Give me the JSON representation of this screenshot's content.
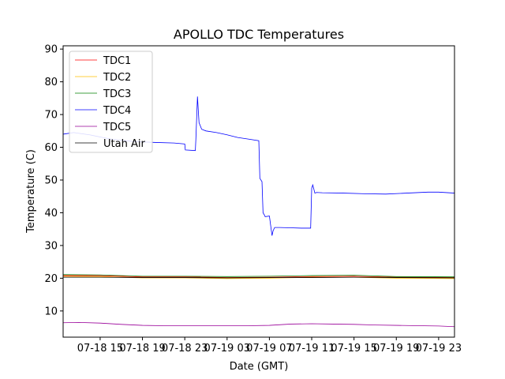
{
  "chart_data": {
    "type": "line",
    "title": "APOLLO TDC Temperatures",
    "xlabel": "Date (GMT)",
    "ylabel": "Temperature (C)",
    "x_range_hours": [
      11.5,
      48.5
    ],
    "ylim": [
      2,
      91
    ],
    "x_ticks": [
      {
        "h": 15,
        "label": "07-18 15"
      },
      {
        "h": 19,
        "label": "07-18 19"
      },
      {
        "h": 23,
        "label": "07-18 23"
      },
      {
        "h": 27,
        "label": "07-19 03"
      },
      {
        "h": 31,
        "label": "07-19 07"
      },
      {
        "h": 35,
        "label": "07-19 11"
      },
      {
        "h": 39,
        "label": "07-19 15"
      },
      {
        "h": 43,
        "label": "07-19 19"
      },
      {
        "h": 47,
        "label": "07-19 23"
      }
    ],
    "y_ticks": [
      10,
      20,
      30,
      40,
      50,
      60,
      70,
      80,
      90
    ],
    "grid": false,
    "legend_position": "top-left",
    "series": [
      {
        "name": "TDC1",
        "color": "#ff0000",
        "x": [
          11.5,
          15,
          19,
          23,
          27,
          31,
          35,
          39,
          43,
          48.5
        ],
        "y": [
          20.8,
          20.8,
          20.4,
          20.4,
          20.2,
          20.3,
          20.5,
          20.6,
          20.3,
          20.2
        ]
      },
      {
        "name": "TDC2",
        "color": "#ffbf00",
        "x": [
          11.5,
          15,
          19,
          23,
          27,
          31,
          35,
          39,
          43,
          48.5
        ],
        "y": [
          20.6,
          20.5,
          20.1,
          20.1,
          19.9,
          20.0,
          20.3,
          20.3,
          20.0,
          19.9
        ]
      },
      {
        "name": "TDC3",
        "color": "#008000",
        "x": [
          11.5,
          15,
          19,
          23,
          27,
          31,
          35,
          39,
          43,
          48.5
        ],
        "y": [
          21.1,
          21.0,
          20.6,
          20.6,
          20.5,
          20.6,
          20.8,
          20.9,
          20.5,
          20.4
        ]
      },
      {
        "name": "TDC4",
        "color": "#0000ff",
        "x": [
          11.5,
          12.5,
          14,
          16,
          18,
          20,
          22,
          23.0,
          23.05,
          24.0,
          24.05,
          24.2,
          24.35,
          24.6,
          25.0,
          26,
          27,
          28,
          29,
          30.0,
          30.1,
          30.3,
          30.4,
          30.55,
          30.6,
          31.0,
          31.25,
          31.35,
          31.5,
          32,
          33,
          34,
          34.9,
          35.0,
          35.1,
          35.3,
          35.45,
          36,
          38,
          40,
          42,
          44,
          46,
          47,
          48.5
        ],
        "y": [
          64.0,
          64.5,
          63.8,
          62.5,
          61.8,
          61.5,
          61.3,
          61.0,
          59.2,
          59.0,
          62.5,
          75.5,
          67.5,
          65.5,
          65.0,
          64.5,
          63.8,
          63.0,
          62.5,
          62.0,
          50.5,
          49.5,
          40.0,
          39.2,
          38.8,
          39.0,
          33.0,
          34.5,
          35.5,
          35.5,
          35.4,
          35.3,
          35.3,
          47.5,
          48.5,
          46.0,
          46.2,
          46.1,
          46.0,
          45.8,
          45.7,
          46.0,
          46.3,
          46.3,
          46.0
        ]
      },
      {
        "name": "TDC5",
        "color": "#990099",
        "x": [
          11.5,
          13,
          15,
          17,
          19,
          21,
          23,
          25,
          27,
          29,
          31,
          33,
          35,
          37,
          39,
          41,
          43,
          45,
          47,
          48.5
        ],
        "y": [
          6.4,
          6.5,
          6.3,
          5.9,
          5.6,
          5.5,
          5.5,
          5.5,
          5.5,
          5.5,
          5.6,
          6.0,
          6.1,
          6.0,
          5.9,
          5.7,
          5.6,
          5.5,
          5.4,
          5.2
        ]
      },
      {
        "name": "Utah Air",
        "color": "#000000",
        "x": [
          11.5,
          15,
          19,
          23,
          27,
          31,
          35,
          39,
          43,
          48.5
        ],
        "y": [
          20.3,
          20.3,
          20.2,
          20.2,
          20.1,
          20.2,
          20.2,
          20.3,
          20.2,
          20.1
        ]
      }
    ]
  }
}
